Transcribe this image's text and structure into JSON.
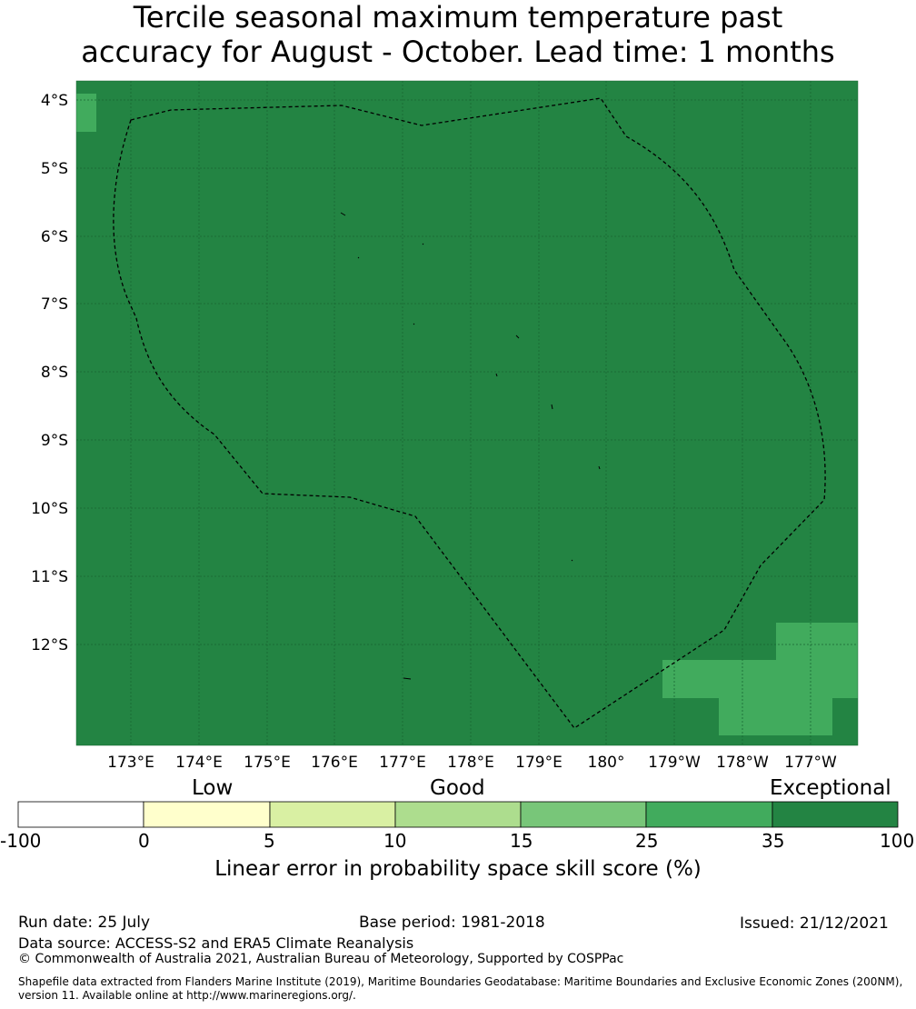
{
  "title": {
    "line1": "Tercile seasonal maximum temperature past",
    "line2": "accuracy for August - October. Lead time: 1 months"
  },
  "map": {
    "lat_labels": [
      "4°S",
      "5°S",
      "6°S",
      "7°S",
      "8°S",
      "9°S",
      "10°S",
      "11°S",
      "12°S"
    ],
    "lon_labels": [
      "173°E",
      "174°E",
      "175°E",
      "176°E",
      "177°E",
      "178°E",
      "179°E",
      "180°",
      "179°W",
      "178°W",
      "177°W"
    ],
    "background_color": "#238443",
    "highlight_color": "#41ab5d",
    "gridline_color": "#1a6633",
    "boundary": "dashed-black-eez"
  },
  "colorbar": {
    "categories": [
      "Low",
      "Good",
      "Exceptional"
    ],
    "ticks": [
      "-100",
      "0",
      "5",
      "10",
      "15",
      "25",
      "35",
      "100"
    ],
    "colors": [
      "#ffffff",
      "#ffffcc",
      "#d9f0a3",
      "#addd8e",
      "#78c679",
      "#41ab5d",
      "#238443"
    ],
    "title": "Linear error in probability space skill score (%)"
  },
  "footer": {
    "run_date": "Run date: 25 July",
    "base_period": "Base period: 1981-2018",
    "issued": "Issued: 21/12/2021",
    "data_source": "Data source: ACCESS-S2 and ERA5 Climate Reanalysis",
    "copyright": "© Commonwealth of Australia 2021, Australian Bureau of Meteorology, Supported by COSPPac",
    "shapefile_line1": "Shapefile data extracted from Flanders Marine Institute (2019), Maritime Boundaries Geodatabase: Maritime Boundaries and Exclusive Economic Zones (200NM),",
    "shapefile_line2": "version 11. Available online at http://www.marineregions.org/."
  }
}
